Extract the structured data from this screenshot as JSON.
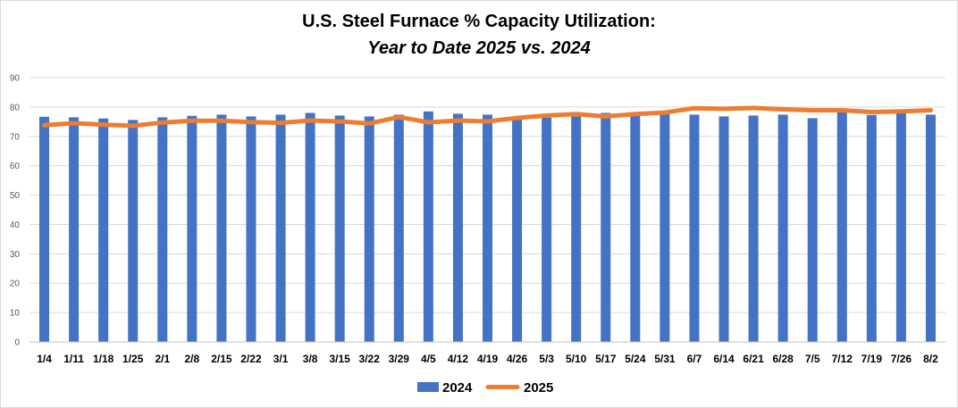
{
  "chart_data": {
    "type": "bar",
    "title": "U.S. Steel Furnace % Capacity Utilization:",
    "subtitle": "Year to Date 2025 vs. 2024",
    "xlabel": "",
    "ylabel": "",
    "ylim": [
      0,
      90
    ],
    "yticks": [
      0,
      10,
      20,
      30,
      40,
      50,
      60,
      70,
      80,
      90
    ],
    "grid": true,
    "legend_position": "bottom",
    "categories": [
      "1/4",
      "1/11",
      "1/18",
      "1/25",
      "2/1",
      "2/8",
      "2/15",
      "2/22",
      "3/1",
      "3/8",
      "3/15",
      "3/22",
      "3/29",
      "4/5",
      "4/12",
      "4/19",
      "4/26",
      "5/3",
      "5/10",
      "5/17",
      "5/24",
      "5/31",
      "6/7",
      "6/14",
      "6/21",
      "6/28",
      "7/5",
      "7/12",
      "7/19",
      "7/26",
      "8/2"
    ],
    "series": [
      {
        "name": "2024",
        "type": "bar",
        "color": "#4472c4",
        "values": [
          76.7,
          76.5,
          76.1,
          75.6,
          76.5,
          77.0,
          77.4,
          76.8,
          77.4,
          78.0,
          77.1,
          76.8,
          77.4,
          78.5,
          77.7,
          77.4,
          75.9,
          76.4,
          76.8,
          78.0,
          77.3,
          77.8,
          77.4,
          76.8,
          77.1,
          77.4,
          76.2,
          78.5,
          77.3,
          78.0,
          77.4
        ]
      },
      {
        "name": "2025",
        "type": "line",
        "color": "#ed7d31",
        "values": [
          73.8,
          74.5,
          74.0,
          73.6,
          74.7,
          75.3,
          75.3,
          74.9,
          74.6,
          75.4,
          75.1,
          74.4,
          76.6,
          74.8,
          75.4,
          75.1,
          76.3,
          77.1,
          77.6,
          76.8,
          77.6,
          78.1,
          79.6,
          79.4,
          79.7,
          79.2,
          78.9,
          78.9,
          78.3,
          78.5,
          78.9
        ]
      }
    ]
  }
}
